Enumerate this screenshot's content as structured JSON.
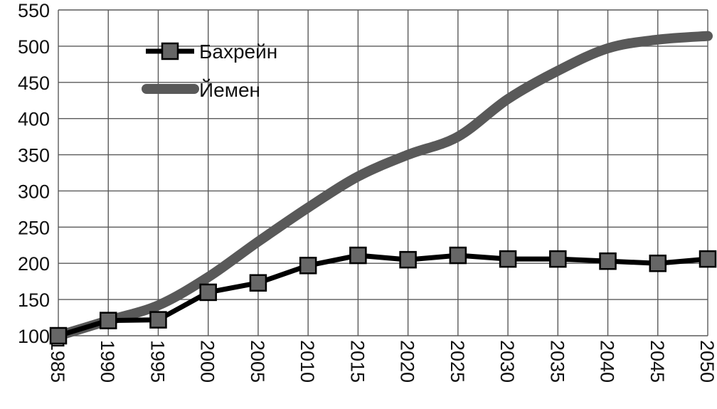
{
  "chart_data": {
    "type": "line",
    "x": [
      1985,
      1990,
      1995,
      2000,
      2005,
      2010,
      2015,
      2020,
      2025,
      2030,
      2035,
      2040,
      2045,
      2050
    ],
    "xlim": [
      1985,
      2050
    ],
    "ylim": [
      100,
      550
    ],
    "y_ticks": [
      100,
      150,
      200,
      250,
      300,
      350,
      400,
      450,
      500,
      550
    ],
    "grid": true,
    "legend_position": "top-left",
    "series": [
      {
        "name": "Бахрейн",
        "color": "#000000",
        "marker": "square",
        "values": [
          100,
          121,
          122,
          160,
          173,
          197,
          211,
          205,
          211,
          206,
          206,
          203,
          200,
          206
        ]
      },
      {
        "name": "Йемен",
        "color": "#595959",
        "marker": "none",
        "values": [
          100,
          121,
          142,
          181,
          230,
          277,
          320,
          350,
          375,
          427,
          466,
          497,
          509,
          514
        ]
      }
    ]
  }
}
